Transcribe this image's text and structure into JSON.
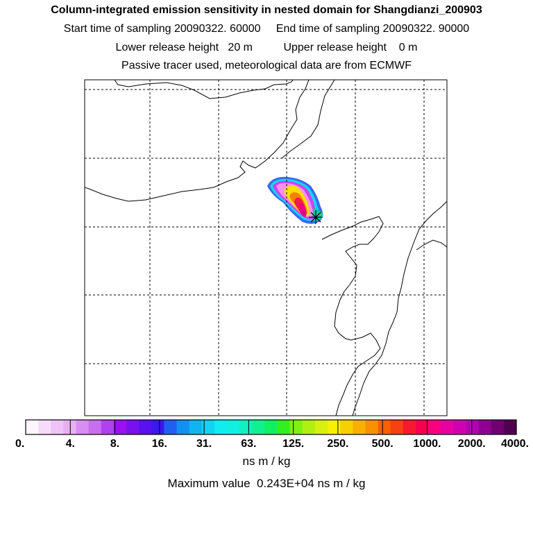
{
  "header": {
    "title": "Column-integrated emission sensitivity in nested domain for Shangdianzi_200903",
    "line1": "Start time of sampling 20090322. 60000     End time of sampling 20090322. 90000",
    "line2": "Lower release height   20 m          Upper release height    0 m",
    "line3": "Passive tracer used, meteorological data are from ECMWF"
  },
  "chart_data": {
    "type": "heatmap",
    "title": "Column-integrated emission sensitivity in nested domain for Shangdianzi_200903",
    "grid": true,
    "colorbar": {
      "tick_labels": [
        "0.",
        "4.",
        "8.",
        "16.",
        "31.",
        "63.",
        "125.",
        "250.",
        "500.",
        "1000.",
        "2000.",
        "4000."
      ],
      "units": "ns m / kg",
      "colors": [
        "#fff6ff",
        "#f6dcfa",
        "#eec4f6",
        "#e8b0f4",
        "#d88ef0",
        "#c86ef0",
        "#b040f0",
        "#9a10f0",
        "#7a10f0",
        "#5a10f0",
        "#3a18f0",
        "#2060f0",
        "#1090f0",
        "#10b4f0",
        "#10d4f0",
        "#10ecf0",
        "#10f0e0",
        "#10f0c0",
        "#10f090",
        "#10f060",
        "#30f020",
        "#80f010",
        "#b0f010",
        "#d8f010",
        "#f8f000",
        "#f8d000",
        "#f8b000",
        "#f89000",
        "#f86000",
        "#f84010",
        "#f81830",
        "#f80050",
        "#f80080",
        "#e800a0",
        "#d000b0",
        "#b000b0",
        "#900090",
        "#700070",
        "#500050"
      ]
    },
    "max_value_text": "Maximum value  0.243E+04 ns m / kg",
    "receptor_marker": "star"
  }
}
